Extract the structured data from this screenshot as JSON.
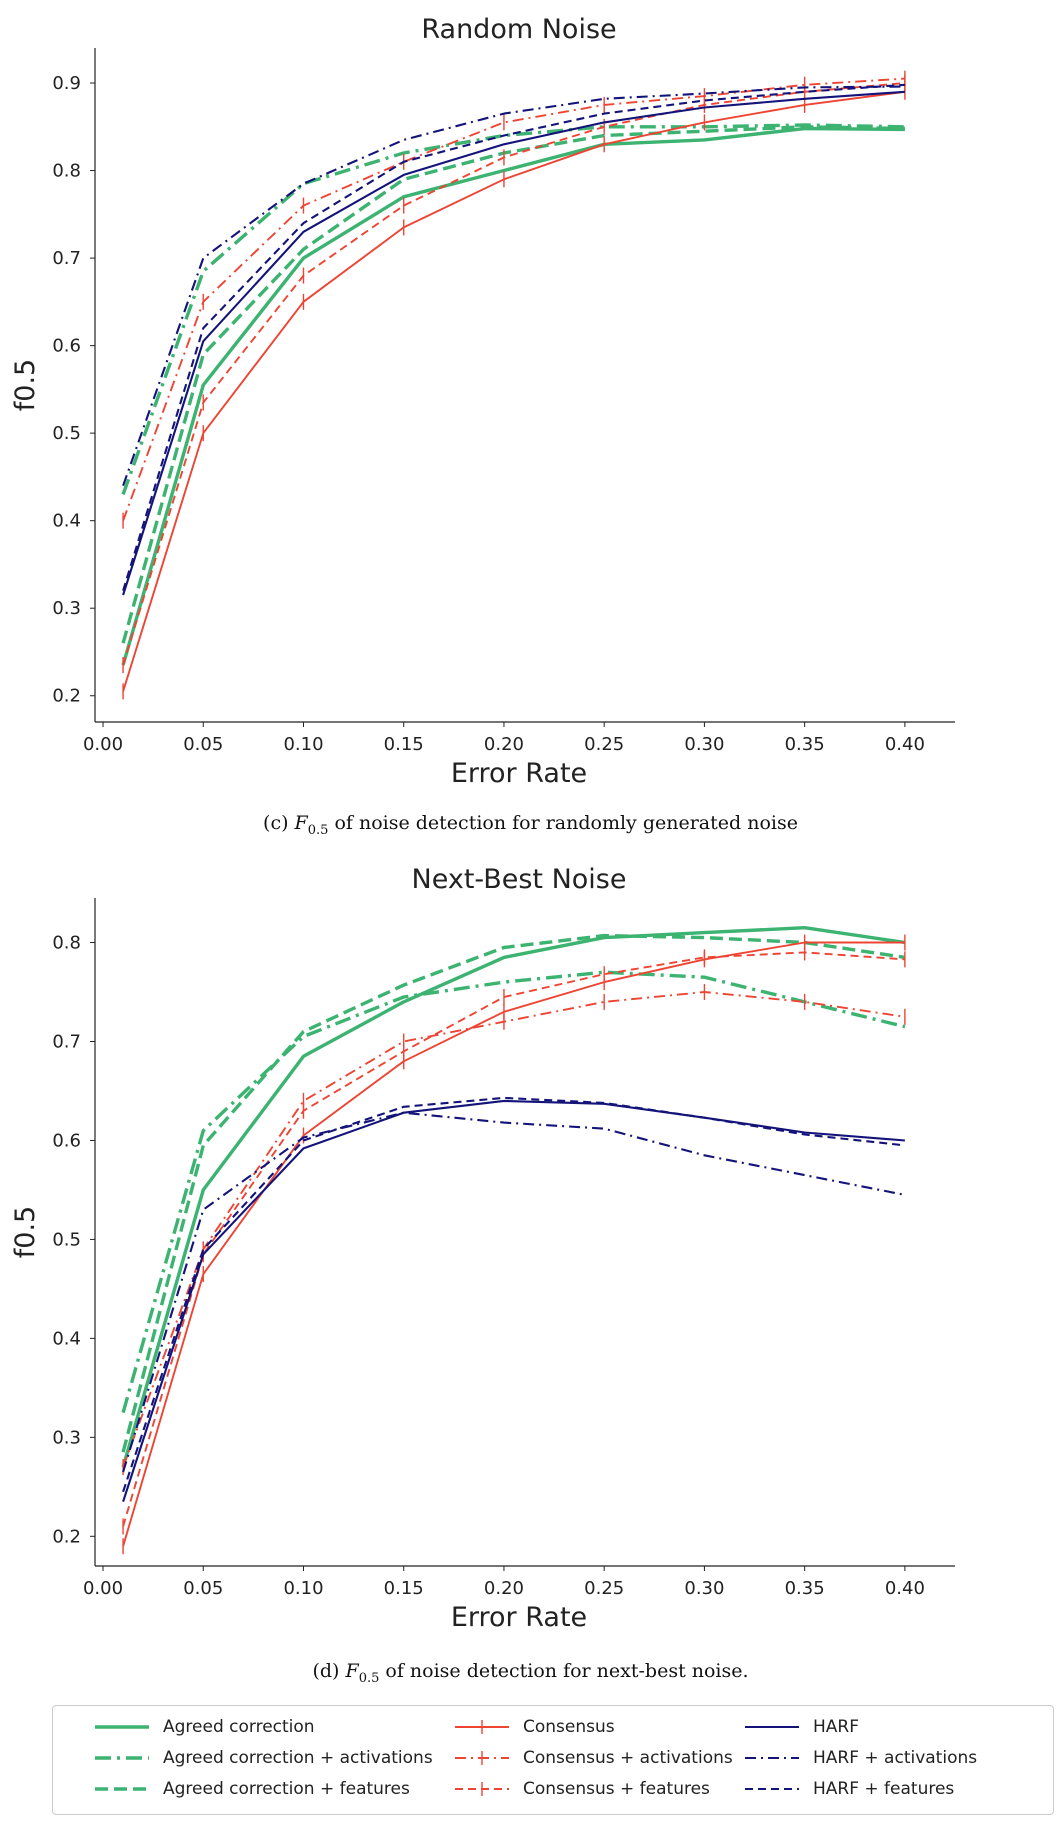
{
  "colors": {
    "agreed": "#3cb371",
    "consensus": "#ee4433",
    "harf": "#13137a"
  },
  "chart_data": [
    {
      "type": "line",
      "title": "Random Noise",
      "xlabel": "Error Rate",
      "ylabel": "f0.5",
      "caption_prefix": "(c)",
      "caption_metric": "F",
      "caption_sub": "0.5",
      "caption_text": "of noise detection for randomly generated noise",
      "x": [
        0.01,
        0.05,
        0.1,
        0.15,
        0.2,
        0.25,
        0.3,
        0.35,
        0.4
      ],
      "xticks": [
        "0.00",
        "0.05",
        "0.10",
        "0.15",
        "0.20",
        "0.25",
        "0.30",
        "0.35",
        "0.40"
      ],
      "yticks": [
        "0.2",
        "0.3",
        "0.4",
        "0.5",
        "0.6",
        "0.7",
        "0.8",
        "0.9"
      ],
      "xlim": [
        -0.004,
        0.425
      ],
      "ylim": [
        0.17,
        0.94
      ],
      "grid": false,
      "series": [
        {
          "name": "Agreed correction",
          "values": [
            0.235,
            0.555,
            0.7,
            0.77,
            0.8,
            0.83,
            0.835,
            0.848,
            0.847
          ]
        },
        {
          "name": "Agreed correction + activations",
          "values": [
            0.43,
            0.685,
            0.785,
            0.82,
            0.84,
            0.85,
            0.85,
            0.852,
            0.85
          ]
        },
        {
          "name": "Agreed correction + features",
          "values": [
            0.26,
            0.59,
            0.71,
            0.79,
            0.82,
            0.84,
            0.845,
            0.85,
            0.848
          ]
        },
        {
          "name": "Consensus",
          "values": [
            0.205,
            0.5,
            0.65,
            0.735,
            0.79,
            0.83,
            0.855,
            0.875,
            0.89
          ]
        },
        {
          "name": "Consensus + activations",
          "values": [
            0.4,
            0.65,
            0.76,
            0.81,
            0.855,
            0.875,
            0.885,
            0.898,
            0.905
          ]
        },
        {
          "name": "Consensus + features",
          "values": [
            0.235,
            0.535,
            0.68,
            0.76,
            0.815,
            0.85,
            0.875,
            0.89,
            0.9
          ]
        },
        {
          "name": "HARF",
          "values": [
            0.315,
            0.605,
            0.73,
            0.795,
            0.83,
            0.855,
            0.872,
            0.882,
            0.89
          ]
        },
        {
          "name": "HARF + activations",
          "values": [
            0.44,
            0.7,
            0.785,
            0.835,
            0.865,
            0.882,
            0.888,
            0.895,
            0.896
          ]
        },
        {
          "name": "HARF + features",
          "values": [
            0.32,
            0.62,
            0.74,
            0.81,
            0.84,
            0.865,
            0.88,
            0.89,
            0.898
          ]
        }
      ]
    },
    {
      "type": "line",
      "title": "Next-Best Noise",
      "xlabel": "Error Rate",
      "ylabel": "f0.5",
      "caption_prefix": "(d)",
      "caption_metric": "F",
      "caption_sub": "0.5",
      "caption_text": "of noise detection for next-best noise.",
      "x": [
        0.01,
        0.05,
        0.1,
        0.15,
        0.2,
        0.25,
        0.3,
        0.35,
        0.4
      ],
      "xticks": [
        "0.00",
        "0.05",
        "0.10",
        "0.15",
        "0.20",
        "0.25",
        "0.30",
        "0.35",
        "0.40"
      ],
      "yticks": [
        "0.2",
        "0.3",
        "0.4",
        "0.5",
        "0.6",
        "0.7",
        "0.8"
      ],
      "xlim": [
        -0.004,
        0.425
      ],
      "ylim": [
        0.17,
        0.845
      ],
      "grid": false,
      "series": [
        {
          "name": "Agreed correction",
          "values": [
            0.27,
            0.55,
            0.685,
            0.74,
            0.785,
            0.805,
            0.81,
            0.815,
            0.8
          ]
        },
        {
          "name": "Agreed correction + activations",
          "values": [
            0.325,
            0.61,
            0.705,
            0.745,
            0.76,
            0.77,
            0.765,
            0.74,
            0.715
          ]
        },
        {
          "name": "Agreed correction + features",
          "values": [
            0.285,
            0.595,
            0.71,
            0.757,
            0.795,
            0.807,
            0.805,
            0.8,
            0.785
          ]
        },
        {
          "name": "Consensus",
          "values": [
            0.19,
            0.465,
            0.605,
            0.68,
            0.73,
            0.76,
            0.783,
            0.8,
            0.8
          ]
        },
        {
          "name": "Consensus + activations",
          "values": [
            0.27,
            0.49,
            0.64,
            0.7,
            0.72,
            0.74,
            0.75,
            0.74,
            0.725
          ]
        },
        {
          "name": "Consensus + features",
          "values": [
            0.21,
            0.485,
            0.63,
            0.69,
            0.745,
            0.768,
            0.785,
            0.79,
            0.783
          ]
        },
        {
          "name": "HARF",
          "values": [
            0.235,
            0.485,
            0.592,
            0.628,
            0.64,
            0.637,
            0.623,
            0.608,
            0.6
          ]
        },
        {
          "name": "HARF + activations",
          "values": [
            0.265,
            0.53,
            0.603,
            0.628,
            0.618,
            0.612,
            0.585,
            0.565,
            0.545
          ]
        },
        {
          "name": "HARF + features",
          "values": [
            0.245,
            0.49,
            0.6,
            0.634,
            0.643,
            0.638,
            0.623,
            0.606,
            0.595
          ]
        }
      ]
    }
  ],
  "legend": {
    "items": [
      {
        "label": "Agreed correction",
        "color": "agreed",
        "style": "solid",
        "marker": false
      },
      {
        "label": "Agreed correction + activations",
        "color": "agreed",
        "style": "dashdot",
        "marker": false
      },
      {
        "label": "Agreed correction + features",
        "color": "agreed",
        "style": "dashed",
        "marker": false
      },
      {
        "label": "Consensus",
        "color": "consensus",
        "style": "solid",
        "marker": true
      },
      {
        "label": "Consensus + activations",
        "color": "consensus",
        "style": "dashdot",
        "marker": true
      },
      {
        "label": "Consensus + features",
        "color": "consensus",
        "style": "dashed",
        "marker": true
      },
      {
        "label": "HARF",
        "color": "harf",
        "style": "solid",
        "marker": false
      },
      {
        "label": "HARF + activations",
        "color": "harf",
        "style": "dashdot",
        "marker": false
      },
      {
        "label": "HARF + features",
        "color": "harf",
        "style": "dashed",
        "marker": false
      }
    ]
  }
}
